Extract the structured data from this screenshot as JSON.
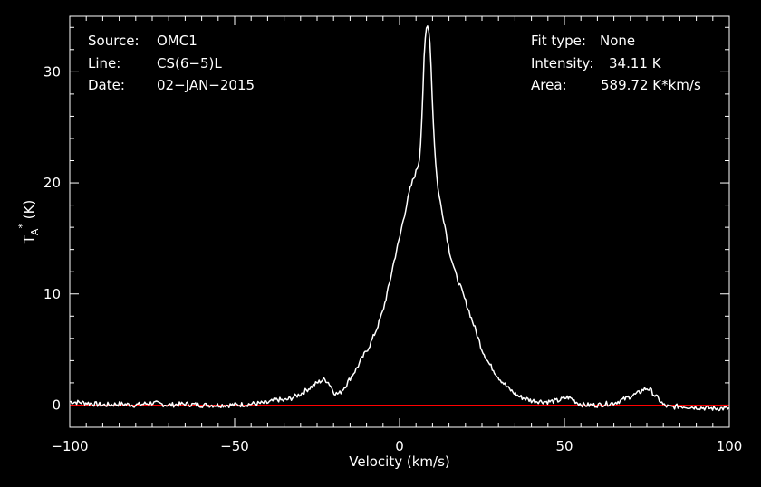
{
  "info": {
    "source_key": "Source:",
    "source_val": "OMC1",
    "line_key": "Line:",
    "line_val": "CS(6−5)L",
    "date_key": "Date:",
    "date_val": "02−JAN−2015",
    "fit_key": "Fit type:",
    "fit_val": "None",
    "intensity_key": "Intensity:",
    "intensity_val": "34.11 K",
    "area_key": "Area:",
    "area_val": "589.72 K*km/s"
  },
  "colors": {
    "background": "#000000",
    "axes": "#ffffff",
    "spectrum": "#ffffff",
    "baseline": "#ff0000"
  },
  "chart_data": {
    "type": "line",
    "xlabel": "Velocity (km/s)",
    "ylabel": "T",
    "ylabel_sub": "A",
    "ylabel_sup": "*",
    "ylabel_unit": " (K)",
    "xlim": [
      -100,
      100
    ],
    "ylim": [
      -2,
      35
    ],
    "xticks": [
      -100,
      -50,
      0,
      50,
      100
    ],
    "xtick_labels": [
      "−100",
      "−50",
      "0",
      "50",
      "100"
    ],
    "yticks": [
      0,
      10,
      20,
      30
    ],
    "ytick_labels": [
      "0",
      "10",
      "20",
      "30"
    ],
    "grid": false,
    "baseline": 0,
    "series": [
      {
        "x": [
          -100,
          -95,
          -90,
          -85,
          -80,
          -75,
          -70,
          -65,
          -60,
          -55,
          -50,
          -45,
          -40,
          -37,
          -35,
          -33,
          -30,
          -27,
          -25,
          -23,
          -22,
          -21,
          -20,
          -19,
          -18,
          -17,
          -16,
          -15,
          -13,
          -11,
          -9,
          -7,
          -5,
          -3,
          -2,
          -1,
          0,
          1,
          2,
          3,
          4,
          5,
          6,
          6.5,
          7,
          7.5,
          8,
          8.5,
          9,
          9.5,
          10,
          10.5,
          11,
          11.5,
          12,
          13,
          14,
          15,
          17,
          19,
          21,
          23,
          25,
          27,
          30,
          33,
          36,
          40,
          45,
          48,
          50,
          51,
          52,
          54,
          56,
          60,
          65,
          68,
          70,
          72,
          74,
          75,
          76,
          77,
          78,
          79,
          80,
          82,
          85,
          90,
          95,
          100
        ],
        "y": [
          0.3,
          0.2,
          0,
          0.1,
          0,
          0.2,
          0,
          0.1,
          0,
          0,
          0,
          0.1,
          0.2,
          0.5,
          0.4,
          0.6,
          1.0,
          1.6,
          2.0,
          2.3,
          2.2,
          1.8,
          1.2,
          1.0,
          1.1,
          1.5,
          1.9,
          2.4,
          3.3,
          4.4,
          5.4,
          6.8,
          8.5,
          11.0,
          12.5,
          13.8,
          15.0,
          16.5,
          17.8,
          19.2,
          20.2,
          21.0,
          22.0,
          24.2,
          27.5,
          31.5,
          33.8,
          34.1,
          33.8,
          31.0,
          27.0,
          24.0,
          21.5,
          20.0,
          18.8,
          17.3,
          15.8,
          14.0,
          11.8,
          10.2,
          8.5,
          6.8,
          5.0,
          3.8,
          2.5,
          1.5,
          0.8,
          0.4,
          0.3,
          0.4,
          0.6,
          0.7,
          0.6,
          0.2,
          0,
          0,
          0.2,
          0.5,
          0.8,
          1.0,
          1.4,
          1.5,
          1.4,
          1.0,
          0.7,
          0.4,
          0,
          -0.2,
          -0.1,
          -0.2,
          -0.3,
          -0.3
        ]
      }
    ]
  }
}
